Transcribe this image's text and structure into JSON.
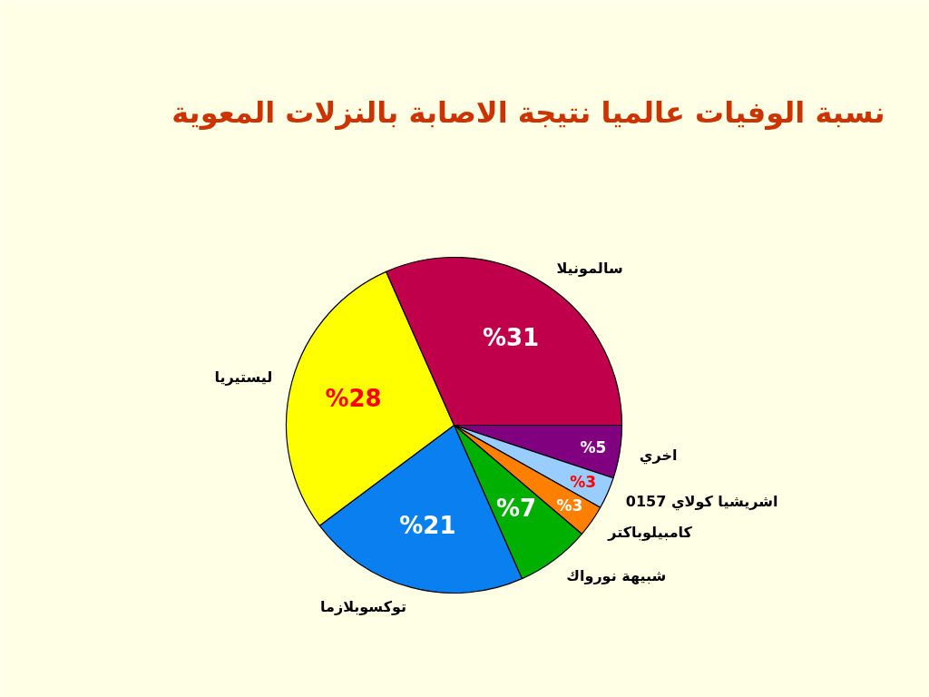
{
  "chart_data": {
    "type": "pie",
    "title": "نسبة الوفيات عالميا نتيجة الاصابة بالنزلات المعوية",
    "categories": [
      "اخري",
      "اشريشيا كولاي 0157",
      "كامبيلوباكتر",
      "شبيهة نورواك",
      "توكسوبلازما",
      "ليستيريا",
      "سالمونيلا"
    ],
    "values": [
      5,
      3,
      3,
      7,
      21,
      28,
      31
    ],
    "colors": [
      "#800080",
      "#99ccff",
      "#ff8000",
      "#00b000",
      "#0a80f0",
      "#ffff00",
      "#c0004a"
    ],
    "value_labels": [
      "%5",
      "%3",
      "%3",
      "%7",
      "%21",
      "%28",
      "%31"
    ]
  }
}
